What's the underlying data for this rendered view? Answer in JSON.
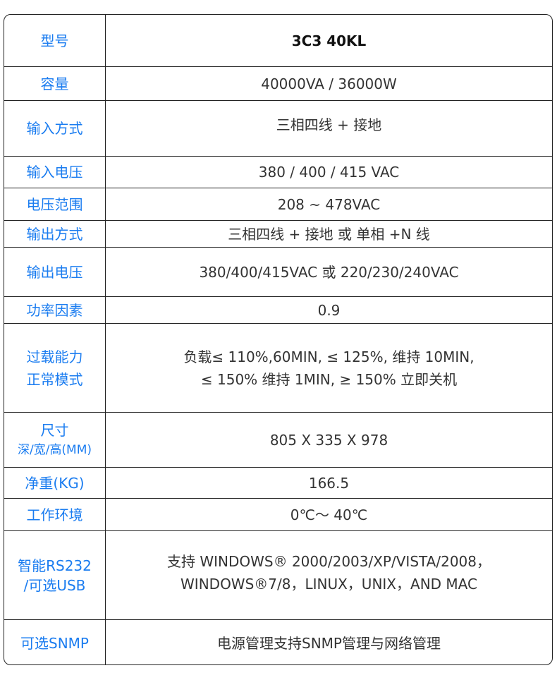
{
  "colors": {
    "label": "#1a7cf0",
    "value": "#333333",
    "border": "#222222"
  },
  "rows": [
    {
      "label": "型号",
      "value": "3C3 40KL"
    },
    {
      "label": "容量",
      "value": "40000VA / 36000W"
    },
    {
      "label": "输入方式",
      "value": "三相四线 + 接地"
    },
    {
      "label": "输入电压",
      "value": "380 / 400 / 415 VAC"
    },
    {
      "label": "电压范围",
      "value": "208 ~ 478VAC"
    },
    {
      "label": "输出方式",
      "value": "三相四线 + 接地 或 单相 +N 线"
    },
    {
      "label": "输出电压",
      "value": "380/400/415VAC 或 220/230/240VAC"
    },
    {
      "label": "功率因素",
      "value": "0.9"
    },
    {
      "label": "过载能力\n正常模式",
      "value": "负载≤ 110%,60MIN, ≤ 125%, 维持 10MIN,\n≤ 150% 维持 1MIN, ≥ 150% 立即关机"
    },
    {
      "label": "尺寸",
      "label2": "深/宽/高(MM)",
      "value": "805 X 335 X 978"
    },
    {
      "label": "净重(KG)",
      "value": "166.5"
    },
    {
      "label": "工作环境",
      "value": "0℃～ 40℃"
    },
    {
      "label": "智能RS232\n/可选USB",
      "value": "支持 WINDOWS® 2000/2003/XP/VISTA/2008，\nWINDOWS®7/8，LINUX，UNIX，AND MAC"
    },
    {
      "label": "可选SNMP",
      "value": "电源管理支持SNMP管理与网络管理"
    }
  ]
}
